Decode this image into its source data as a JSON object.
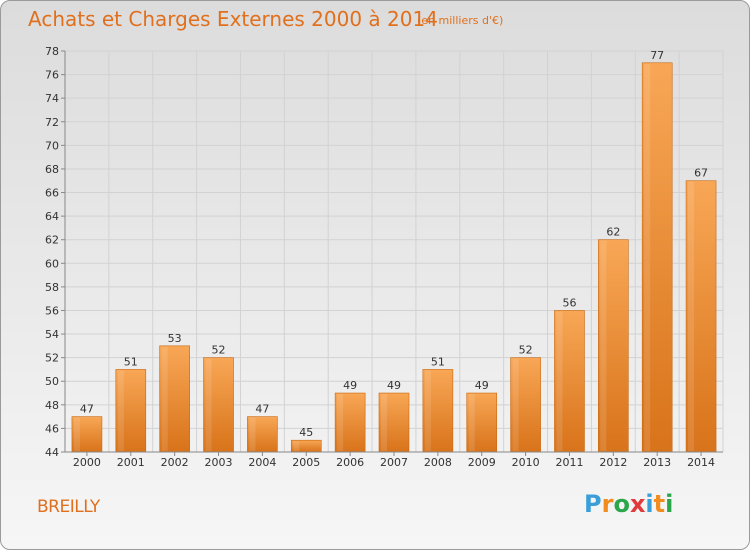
{
  "title": "Achats et Charges Externes 2000 à 2014",
  "subtitle": "(en milliers d'€)",
  "town": "BREILLY",
  "logo": {
    "text": "Proxiti",
    "letters": [
      "P",
      "r",
      "o",
      "x",
      "i",
      "t",
      "i"
    ],
    "colors": [
      "#3a9fd8",
      "#f28c1e",
      "#2ca64a",
      "#e23a3a",
      "#3a9fd8",
      "#f28c1e",
      "#2ca64a"
    ]
  },
  "colors": {
    "accent": "#e0701e",
    "bar_light": "#f6a552",
    "bar_dark": "#d76f12"
  },
  "chart_data": {
    "type": "bar",
    "title": "Achats et Charges Externes 2000 à 2014",
    "subtitle": "(en milliers d'€)",
    "xlabel": "",
    "ylabel": "",
    "categories": [
      "2000",
      "2001",
      "2002",
      "2003",
      "2004",
      "2005",
      "2006",
      "2007",
      "2008",
      "2009",
      "2010",
      "2011",
      "2012",
      "2013",
      "2014"
    ],
    "values": [
      47,
      51,
      53,
      52,
      47,
      45,
      49,
      49,
      51,
      49,
      52,
      56,
      62,
      77,
      67
    ],
    "ylim": [
      44,
      78
    ],
    "yticks": [
      44,
      46,
      48,
      50,
      52,
      54,
      56,
      58,
      60,
      62,
      64,
      66,
      68,
      70,
      72,
      74,
      76,
      78
    ],
    "grid": true,
    "legend": "none"
  }
}
